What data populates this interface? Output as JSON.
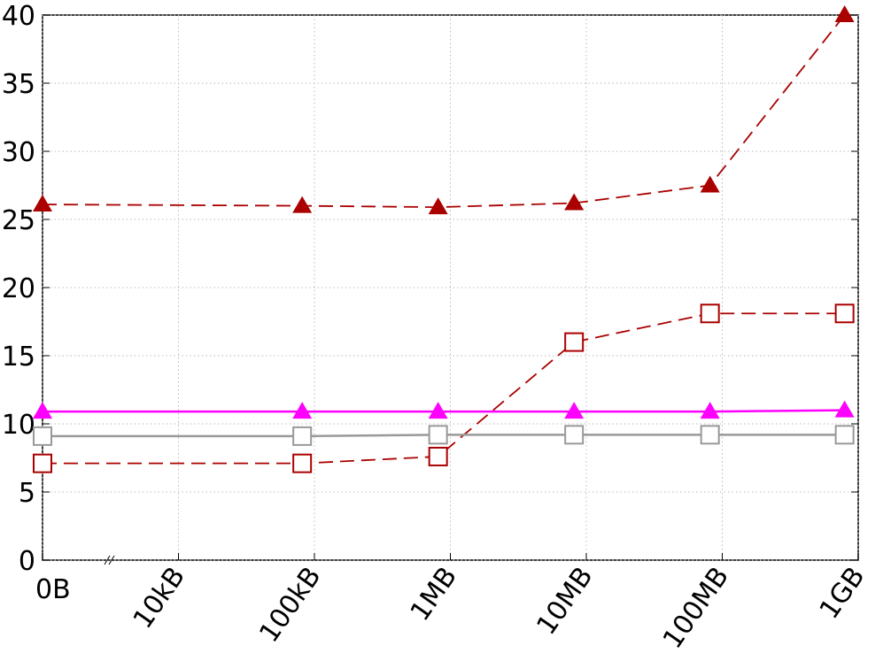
{
  "chart_data": {
    "type": "line",
    "x": [
      3,
      4.91,
      5.91,
      6.91,
      7.91,
      8.9
    ],
    "xlim": [
      3,
      9
    ],
    "xticks": [
      {
        "value": 3,
        "label": "0B"
      },
      {
        "value": 4,
        "label": "10kB"
      },
      {
        "value": 5,
        "label": "100kB"
      },
      {
        "value": 6,
        "label": "1MB"
      },
      {
        "value": 7,
        "label": "10MB"
      },
      {
        "value": 8,
        "label": "100MB"
      },
      {
        "value": 9,
        "label": "1GB"
      }
    ],
    "ylim": [
      0,
      40
    ],
    "yticks": [
      0,
      5,
      10,
      15,
      20,
      25,
      30,
      35,
      40
    ],
    "grid": true,
    "series": [
      {
        "color": "#aa0000",
        "marker": "triangle",
        "dashed": true,
        "values": [
          26.1,
          26.0,
          25.9,
          26.2,
          27.5,
          40
        ]
      },
      {
        "color": "#aa0000",
        "marker": "square",
        "dashed": true,
        "values": [
          7.1,
          7.1,
          7.6,
          16.0,
          18.1,
          18.1
        ]
      },
      {
        "color": "#ff00ff",
        "marker": "triangle",
        "dashed": false,
        "values": [
          10.9,
          10.9,
          10.9,
          10.9,
          10.9,
          11.0
        ]
      },
      {
        "color": "#999999",
        "marker": "square",
        "dashed": false,
        "values": [
          9.1,
          9.1,
          9.2,
          9.2,
          9.2,
          9.2
        ]
      }
    ]
  }
}
